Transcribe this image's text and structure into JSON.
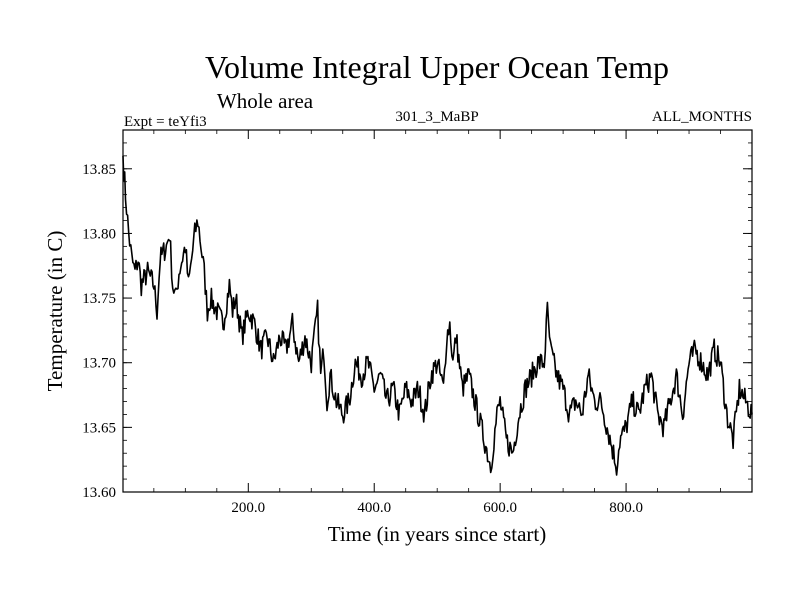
{
  "chart_data": {
    "type": "line",
    "title": "Volume Integral Upper Ocean Temp",
    "subtitle": "Whole area",
    "header_left": "Expt = teYfi3",
    "header_center": "301_3_MaBP",
    "header_right": "ALL_MONTHS",
    "xlabel": "Time (in years since start)",
    "ylabel": "Temperature (in C)",
    "xlim": [
      1,
      1000
    ],
    "ylim": [
      13.6,
      13.88
    ],
    "xticks": [
      200,
      400,
      600,
      800
    ],
    "xtick_labels": [
      "200.0",
      "400.0",
      "600.0",
      "800.0"
    ],
    "yticks": [
      13.6,
      13.65,
      13.7,
      13.75,
      13.8,
      13.85
    ],
    "ytick_labels": [
      "13.60",
      "13.65",
      "13.70",
      "13.75",
      "13.80",
      "13.85"
    ],
    "grid": false,
    "series": [
      {
        "name": "Volume integral upper ocean temperature",
        "color": "#000000",
        "x": [
          1,
          5,
          10,
          15,
          20,
          25,
          30,
          40,
          50,
          55,
          60,
          70,
          75,
          80,
          85,
          90,
          100,
          105,
          110,
          115,
          120,
          125,
          130,
          135,
          140,
          150,
          160,
          170,
          175,
          180,
          190,
          200,
          210,
          220,
          230,
          240,
          250,
          260,
          270,
          280,
          290,
          300,
          305,
          310,
          315,
          320,
          325,
          330,
          335,
          340,
          350,
          360,
          370,
          380,
          390,
          400,
          410,
          420,
          430,
          440,
          450,
          460,
          470,
          480,
          490,
          500,
          510,
          515,
          520,
          525,
          530,
          540,
          550,
          560,
          570,
          580,
          585,
          590,
          595,
          600,
          610,
          620,
          630,
          640,
          650,
          660,
          670,
          675,
          680,
          690,
          700,
          710,
          720,
          730,
          740,
          750,
          760,
          770,
          780,
          785,
          790,
          800,
          810,
          820,
          830,
          840,
          850,
          860,
          870,
          880,
          890,
          900,
          910,
          920,
          930,
          940,
          950,
          960,
          970,
          975,
          980,
          990,
          1000
        ],
        "values": [
          13.86,
          13.83,
          13.8,
          13.78,
          13.77,
          13.78,
          13.76,
          13.77,
          13.76,
          13.74,
          13.78,
          13.79,
          13.8,
          13.76,
          13.75,
          13.77,
          13.79,
          13.76,
          13.78,
          13.8,
          13.81,
          13.79,
          13.77,
          13.74,
          13.75,
          13.74,
          13.73,
          13.76,
          13.74,
          13.75,
          13.72,
          13.74,
          13.73,
          13.71,
          13.72,
          13.7,
          13.72,
          13.71,
          13.73,
          13.7,
          13.72,
          13.7,
          13.72,
          13.74,
          13.69,
          13.71,
          13.67,
          13.69,
          13.68,
          13.67,
          13.66,
          13.67,
          13.7,
          13.69,
          13.7,
          13.68,
          13.69,
          13.67,
          13.68,
          13.66,
          13.68,
          13.67,
          13.68,
          13.66,
          13.69,
          13.7,
          13.68,
          13.72,
          13.73,
          13.7,
          13.72,
          13.68,
          13.69,
          13.67,
          13.65,
          13.63,
          13.62,
          13.64,
          13.66,
          13.67,
          13.64,
          13.63,
          13.66,
          13.68,
          13.69,
          13.7,
          13.7,
          13.74,
          13.71,
          13.69,
          13.68,
          13.66,
          13.67,
          13.66,
          13.69,
          13.67,
          13.67,
          13.65,
          13.63,
          13.62,
          13.64,
          13.65,
          13.67,
          13.66,
          13.68,
          13.69,
          13.66,
          13.65,
          13.67,
          13.69,
          13.66,
          13.7,
          13.71,
          13.7,
          13.69,
          13.71,
          13.7,
          13.66,
          13.64,
          13.66,
          13.68,
          13.67,
          13.66
        ]
      }
    ]
  }
}
